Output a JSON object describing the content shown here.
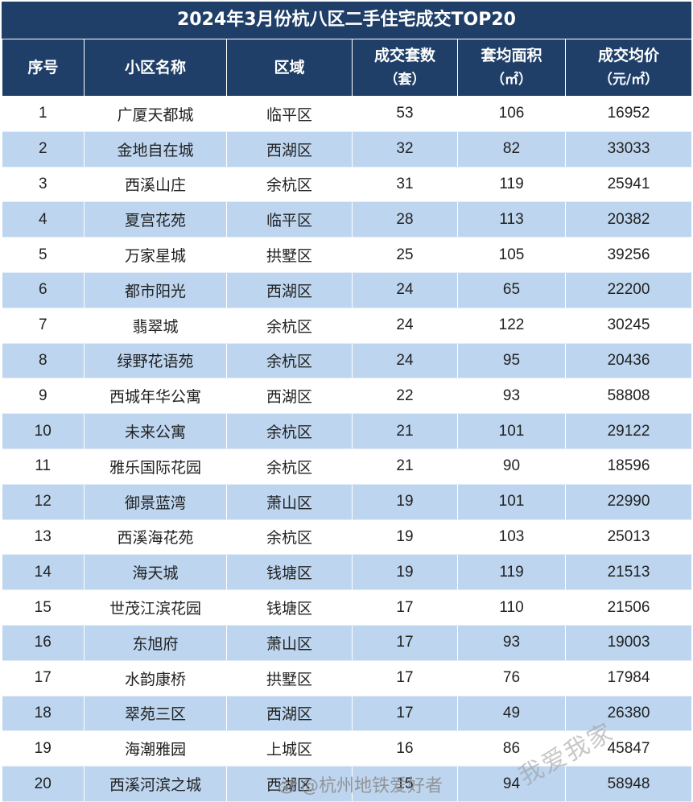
{
  "title": "2024年3月份杭八区二手住宅成交TOP20",
  "headers": {
    "rank": "序号",
    "name": "小区名称",
    "district": "区域",
    "deals": "成交套数",
    "deals_unit": "（套）",
    "area": "套均面积",
    "area_unit": "（㎡）",
    "price": "成交均价",
    "price_unit": "（元/㎡）"
  },
  "rows": [
    {
      "rank": "1",
      "name": "广厦天都城",
      "district": "临平区",
      "deals": "53",
      "area": "106",
      "price": "16952"
    },
    {
      "rank": "2",
      "name": "金地自在城",
      "district": "西湖区",
      "deals": "32",
      "area": "82",
      "price": "33033"
    },
    {
      "rank": "3",
      "name": "西溪山庄",
      "district": "余杭区",
      "deals": "31",
      "area": "119",
      "price": "25941"
    },
    {
      "rank": "4",
      "name": "夏宫花苑",
      "district": "临平区",
      "deals": "28",
      "area": "113",
      "price": "20382"
    },
    {
      "rank": "5",
      "name": "万家星城",
      "district": "拱墅区",
      "deals": "25",
      "area": "105",
      "price": "39256"
    },
    {
      "rank": "6",
      "name": "都市阳光",
      "district": "西湖区",
      "deals": "24",
      "area": "65",
      "price": "22200"
    },
    {
      "rank": "7",
      "name": "翡翠城",
      "district": "余杭区",
      "deals": "24",
      "area": "122",
      "price": "30245"
    },
    {
      "rank": "8",
      "name": "绿野花语苑",
      "district": "余杭区",
      "deals": "24",
      "area": "95",
      "price": "20436"
    },
    {
      "rank": "9",
      "name": "西城年华公寓",
      "district": "西湖区",
      "deals": "22",
      "area": "93",
      "price": "58808"
    },
    {
      "rank": "10",
      "name": "未来公寓",
      "district": "余杭区",
      "deals": "21",
      "area": "101",
      "price": "29122"
    },
    {
      "rank": "11",
      "name": "雅乐国际花园",
      "district": "余杭区",
      "deals": "21",
      "area": "90",
      "price": "18596"
    },
    {
      "rank": "12",
      "name": "御景蓝湾",
      "district": "萧山区",
      "deals": "19",
      "area": "101",
      "price": "22990"
    },
    {
      "rank": "13",
      "name": "西溪海花苑",
      "district": "余杭区",
      "deals": "19",
      "area": "103",
      "price": "25013"
    },
    {
      "rank": "14",
      "name": "海天城",
      "district": "钱塘区",
      "deals": "19",
      "area": "119",
      "price": "21513"
    },
    {
      "rank": "15",
      "name": "世茂江滨花园",
      "district": "钱塘区",
      "deals": "17",
      "area": "110",
      "price": "21506"
    },
    {
      "rank": "16",
      "name": "东旭府",
      "district": "萧山区",
      "deals": "17",
      "area": "93",
      "price": "19003"
    },
    {
      "rank": "17",
      "name": "水韵康桥",
      "district": "拱墅区",
      "deals": "17",
      "area": "76",
      "price": "17984"
    },
    {
      "rank": "18",
      "name": "翠苑三区",
      "district": "西湖区",
      "deals": "17",
      "area": "49",
      "price": "26380"
    },
    {
      "rank": "19",
      "name": "海潮雅园",
      "district": "上城区",
      "deals": "16",
      "area": "86",
      "price": "45847"
    },
    {
      "rank": "20",
      "name": "西溪河滨之城",
      "district": "西湖区",
      "deals": "15",
      "area": "94",
      "price": "58948"
    }
  ],
  "watermarks": {
    "weibo": "@杭州地铁爱好者",
    "diagonal": "我爱我家",
    "weibo_icon": "weibo-icon"
  },
  "colors": {
    "header_bg": "#1f3f68",
    "stripe": "#bdd5ef",
    "header_text": "#ffffff"
  }
}
